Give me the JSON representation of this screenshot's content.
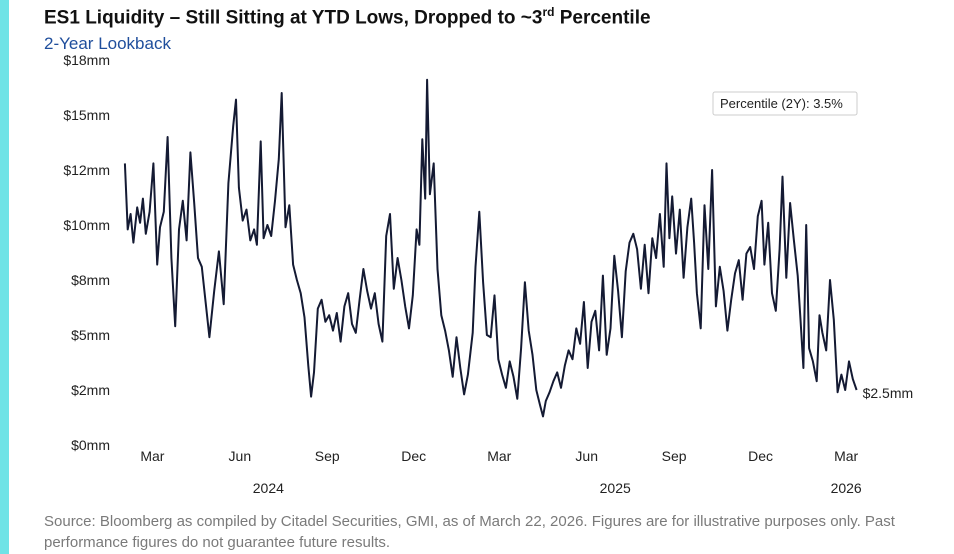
{
  "header": {
    "title_main": "ES1 Liquidity – Still Sitting at YTD Lows, Dropped to ~3",
    "title_sup": "rd",
    "title_end": " Percentile",
    "subtitle": "2-Year Lookback"
  },
  "footer": {
    "source": "Source: Bloomberg as compiled by Citadel Securities, GMI, as of March 22, 2026. Figures are for illustrative purposes only. Past performance figures do not guarantee future results."
  },
  "colors": {
    "accent": "#6fe3e6",
    "line": "#141a33",
    "subtitle": "#1f4e9c"
  },
  "chart_data": {
    "type": "line",
    "title": "ES1 Liquidity – Still Sitting at YTD Lows, Dropped to ~3rd Percentile",
    "subtitle": "2-Year Lookback",
    "xlabel": "",
    "ylabel": "",
    "ylim": [
      0,
      17
    ],
    "xlim": [
      "2024-01-29",
      "2026-03-24"
    ],
    "grid": false,
    "legend": "none",
    "y_ticks": [
      {
        "value": 0,
        "label": "$0mm"
      },
      {
        "value": 2.5,
        "label": "$2mm"
      },
      {
        "value": 5,
        "label": "$5mm"
      },
      {
        "value": 7.5,
        "label": "$8mm"
      },
      {
        "value": 10,
        "label": "$10mm"
      },
      {
        "value": 12.5,
        "label": "$12mm"
      },
      {
        "value": 15,
        "label": "$15mm"
      },
      {
        "value": 17.5,
        "label": "$18mm"
      }
    ],
    "x_ticks": [
      {
        "date": "2024-03-01",
        "label": "Mar"
      },
      {
        "date": "2024-06-01",
        "label": "Jun"
      },
      {
        "date": "2024-09-01",
        "label": "Sep"
      },
      {
        "date": "2024-12-01",
        "label": "Dec"
      },
      {
        "date": "2025-03-01",
        "label": "Mar"
      },
      {
        "date": "2025-06-01",
        "label": "Jun"
      },
      {
        "date": "2025-09-01",
        "label": "Sep"
      },
      {
        "date": "2025-12-01",
        "label": "Dec"
      },
      {
        "date": "2026-03-01",
        "label": "Mar"
      }
    ],
    "year_labels": [
      {
        "date": "2024-07-01",
        "label": "2024"
      },
      {
        "date": "2025-07-01",
        "label": "2025"
      },
      {
        "date": "2026-03-01",
        "label": "2026"
      }
    ],
    "annotation_box": "Percentile (2Y): 3.5%",
    "end_label": "$2.5mm",
    "series": [
      {
        "values": [
          [
            "2024-02-01",
            12.8
          ],
          [
            "2024-02-04",
            9.8
          ],
          [
            "2024-02-07",
            10.5
          ],
          [
            "2024-02-10",
            9.2
          ],
          [
            "2024-02-14",
            10.8
          ],
          [
            "2024-02-17",
            10.1
          ],
          [
            "2024-02-20",
            11.2
          ],
          [
            "2024-02-23",
            9.6
          ],
          [
            "2024-02-27",
            10.6
          ],
          [
            "2024-03-02",
            12.8
          ],
          [
            "2024-03-06",
            8.2
          ],
          [
            "2024-03-09",
            9.9
          ],
          [
            "2024-03-13",
            10.6
          ],
          [
            "2024-03-17",
            14.0
          ],
          [
            "2024-03-21",
            8.5
          ],
          [
            "2024-03-25",
            5.4
          ],
          [
            "2024-03-29",
            9.8
          ],
          [
            "2024-04-02",
            11.1
          ],
          [
            "2024-04-06",
            9.3
          ],
          [
            "2024-04-10",
            13.3
          ],
          [
            "2024-04-14",
            11.0
          ],
          [
            "2024-04-18",
            8.5
          ],
          [
            "2024-04-22",
            8.1
          ],
          [
            "2024-04-26",
            6.5
          ],
          [
            "2024-04-30",
            4.9
          ],
          [
            "2024-05-05",
            7.0
          ],
          [
            "2024-05-10",
            8.8
          ],
          [
            "2024-05-15",
            6.4
          ],
          [
            "2024-05-20",
            11.9
          ],
          [
            "2024-05-25",
            14.5
          ],
          [
            "2024-05-28",
            15.7
          ],
          [
            "2024-05-31",
            11.7
          ],
          [
            "2024-06-04",
            10.2
          ],
          [
            "2024-06-08",
            10.7
          ],
          [
            "2024-06-12",
            9.3
          ],
          [
            "2024-06-16",
            9.8
          ],
          [
            "2024-06-19",
            9.1
          ],
          [
            "2024-06-23",
            13.8
          ],
          [
            "2024-06-26",
            9.4
          ],
          [
            "2024-06-30",
            10.0
          ],
          [
            "2024-07-04",
            9.5
          ],
          [
            "2024-07-08",
            11.1
          ],
          [
            "2024-07-12",
            13.0
          ],
          [
            "2024-07-15",
            16.0
          ],
          [
            "2024-07-19",
            9.9
          ],
          [
            "2024-07-23",
            10.9
          ],
          [
            "2024-07-27",
            8.2
          ],
          [
            "2024-07-31",
            7.5
          ],
          [
            "2024-08-04",
            6.9
          ],
          [
            "2024-08-08",
            5.8
          ],
          [
            "2024-08-12",
            3.6
          ],
          [
            "2024-08-15",
            2.2
          ],
          [
            "2024-08-18",
            3.3
          ],
          [
            "2024-08-22",
            6.2
          ],
          [
            "2024-08-26",
            6.6
          ],
          [
            "2024-08-30",
            5.6
          ],
          [
            "2024-09-03",
            5.9
          ],
          [
            "2024-09-07",
            5.2
          ],
          [
            "2024-09-11",
            6.0
          ],
          [
            "2024-09-15",
            4.7
          ],
          [
            "2024-09-19",
            6.3
          ],
          [
            "2024-09-23",
            6.9
          ],
          [
            "2024-09-27",
            5.5
          ],
          [
            "2024-10-01",
            5.1
          ],
          [
            "2024-10-05",
            6.6
          ],
          [
            "2024-10-09",
            8.0
          ],
          [
            "2024-10-13",
            7.0
          ],
          [
            "2024-10-17",
            6.2
          ],
          [
            "2024-10-21",
            6.9
          ],
          [
            "2024-10-25",
            5.5
          ],
          [
            "2024-10-29",
            4.7
          ],
          [
            "2024-11-02",
            9.5
          ],
          [
            "2024-11-06",
            10.5
          ],
          [
            "2024-11-10",
            7.1
          ],
          [
            "2024-11-14",
            8.5
          ],
          [
            "2024-11-18",
            7.5
          ],
          [
            "2024-11-22",
            6.3
          ],
          [
            "2024-11-26",
            5.3
          ],
          [
            "2024-11-30",
            6.8
          ],
          [
            "2024-12-04",
            9.8
          ],
          [
            "2024-12-07",
            9.1
          ],
          [
            "2024-12-10",
            13.9
          ],
          [
            "2024-12-13",
            11.2
          ],
          [
            "2024-12-15",
            16.6
          ],
          [
            "2024-12-18",
            11.4
          ],
          [
            "2024-12-22",
            12.8
          ],
          [
            "2024-12-26",
            8.0
          ],
          [
            "2024-12-30",
            5.9
          ],
          [
            "2025-01-03",
            5.2
          ],
          [
            "2025-01-07",
            4.3
          ],
          [
            "2025-01-11",
            3.1
          ],
          [
            "2025-01-15",
            4.9
          ],
          [
            "2025-01-19",
            3.5
          ],
          [
            "2025-01-23",
            2.3
          ],
          [
            "2025-01-27",
            3.2
          ],
          [
            "2025-02-01",
            5.1
          ],
          [
            "2025-02-04",
            8.1
          ],
          [
            "2025-02-08",
            10.6
          ],
          [
            "2025-02-12",
            7.4
          ],
          [
            "2025-02-16",
            5.0
          ],
          [
            "2025-02-20",
            4.9
          ],
          [
            "2025-02-24",
            6.8
          ],
          [
            "2025-02-28",
            3.9
          ],
          [
            "2025-03-04",
            3.2
          ],
          [
            "2025-03-08",
            2.6
          ],
          [
            "2025-03-12",
            3.8
          ],
          [
            "2025-03-16",
            3.1
          ],
          [
            "2025-03-20",
            2.1
          ],
          [
            "2025-03-24",
            4.4
          ],
          [
            "2025-03-28",
            7.4
          ],
          [
            "2025-04-01",
            5.2
          ],
          [
            "2025-04-05",
            4.1
          ],
          [
            "2025-04-09",
            2.5
          ],
          [
            "2025-04-13",
            1.8
          ],
          [
            "2025-04-16",
            1.3
          ],
          [
            "2025-04-19",
            2.0
          ],
          [
            "2025-04-23",
            2.4
          ],
          [
            "2025-04-27",
            2.9
          ],
          [
            "2025-05-01",
            3.3
          ],
          [
            "2025-05-05",
            2.6
          ],
          [
            "2025-05-09",
            3.6
          ],
          [
            "2025-05-13",
            4.3
          ],
          [
            "2025-05-17",
            3.9
          ],
          [
            "2025-05-21",
            5.3
          ],
          [
            "2025-05-25",
            4.6
          ],
          [
            "2025-05-29",
            6.5
          ],
          [
            "2025-06-02",
            3.5
          ],
          [
            "2025-06-06",
            5.6
          ],
          [
            "2025-06-10",
            6.1
          ],
          [
            "2025-06-14",
            4.3
          ],
          [
            "2025-06-18",
            7.7
          ],
          [
            "2025-06-22",
            4.1
          ],
          [
            "2025-06-26",
            5.3
          ],
          [
            "2025-06-30",
            8.6
          ],
          [
            "2025-07-04",
            7.0
          ],
          [
            "2025-07-08",
            4.9
          ],
          [
            "2025-07-12",
            7.9
          ],
          [
            "2025-07-16",
            9.2
          ],
          [
            "2025-07-20",
            9.6
          ],
          [
            "2025-07-24",
            8.9
          ],
          [
            "2025-07-28",
            7.1
          ],
          [
            "2025-08-01",
            9.1
          ],
          [
            "2025-08-05",
            6.9
          ],
          [
            "2025-08-09",
            9.4
          ],
          [
            "2025-08-13",
            8.5
          ],
          [
            "2025-08-17",
            10.5
          ],
          [
            "2025-08-21",
            8.1
          ],
          [
            "2025-08-24",
            12.8
          ],
          [
            "2025-08-27",
            9.4
          ],
          [
            "2025-08-30",
            11.3
          ],
          [
            "2025-09-03",
            8.7
          ],
          [
            "2025-09-07",
            10.7
          ],
          [
            "2025-09-11",
            7.6
          ],
          [
            "2025-09-15",
            9.9
          ],
          [
            "2025-09-19",
            11.2
          ],
          [
            "2025-09-22",
            9.2
          ],
          [
            "2025-09-25",
            6.9
          ],
          [
            "2025-09-29",
            5.3
          ],
          [
            "2025-10-03",
            10.9
          ],
          [
            "2025-10-07",
            8.0
          ],
          [
            "2025-10-11",
            12.5
          ],
          [
            "2025-10-15",
            6.3
          ],
          [
            "2025-10-19",
            8.1
          ],
          [
            "2025-10-23",
            7.0
          ],
          [
            "2025-10-27",
            5.2
          ],
          [
            "2025-10-31",
            6.6
          ],
          [
            "2025-11-04",
            7.8
          ],
          [
            "2025-11-08",
            8.4
          ],
          [
            "2025-11-12",
            6.6
          ],
          [
            "2025-11-16",
            8.7
          ],
          [
            "2025-11-20",
            9.0
          ],
          [
            "2025-11-24",
            8.0
          ],
          [
            "2025-11-28",
            10.4
          ],
          [
            "2025-12-02",
            11.1
          ],
          [
            "2025-12-05",
            8.2
          ],
          [
            "2025-12-09",
            10.1
          ],
          [
            "2025-12-13",
            6.9
          ],
          [
            "2025-12-17",
            6.1
          ],
          [
            "2025-12-21",
            8.9
          ],
          [
            "2025-12-24",
            12.2
          ],
          [
            "2025-12-28",
            7.6
          ],
          [
            "2026-01-01",
            11.0
          ],
          [
            "2026-01-05",
            9.3
          ],
          [
            "2026-01-09",
            7.7
          ],
          [
            "2026-01-12",
            5.7
          ],
          [
            "2026-01-15",
            3.5
          ],
          [
            "2026-01-18",
            10.0
          ],
          [
            "2026-01-21",
            4.4
          ],
          [
            "2026-01-25",
            3.8
          ],
          [
            "2026-01-29",
            2.9
          ],
          [
            "2026-02-01",
            5.9
          ],
          [
            "2026-02-04",
            5.1
          ],
          [
            "2026-02-08",
            4.3
          ],
          [
            "2026-02-12",
            7.5
          ],
          [
            "2026-02-16",
            5.7
          ],
          [
            "2026-02-20",
            2.4
          ],
          [
            "2026-02-24",
            3.2
          ],
          [
            "2026-02-28",
            2.5
          ],
          [
            "2026-03-04",
            3.8
          ],
          [
            "2026-03-08",
            3.0
          ],
          [
            "2026-03-12",
            2.5
          ]
        ]
      }
    ]
  }
}
